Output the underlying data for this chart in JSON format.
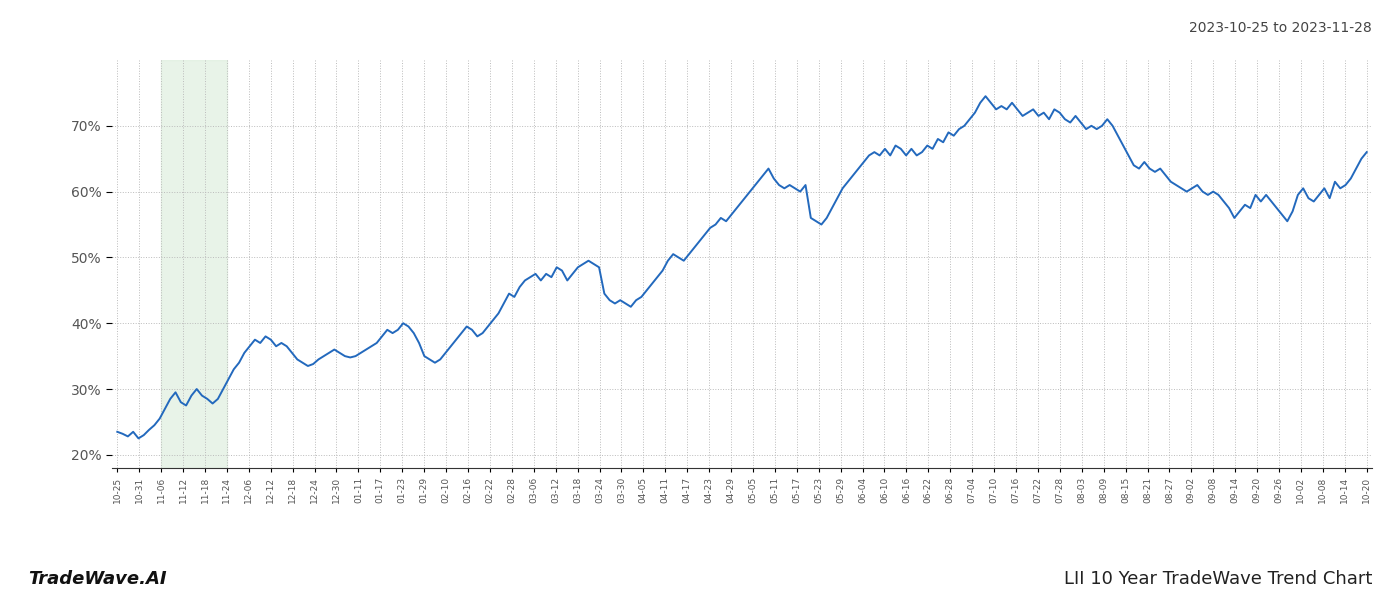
{
  "title_top_right": "2023-10-25 to 2023-11-28",
  "footer_left": "TradeWave.AI",
  "footer_right": "LII 10 Year TradeWave Trend Chart",
  "highlight_region_start_label": "11-06",
  "highlight_region_end_label": "11-24",
  "line_color": "#2369bd",
  "line_width": 1.4,
  "highlight_color": "#ddeedd",
  "highlight_alpha": 0.65,
  "bg_color": "#ffffff",
  "grid_color": "#bbbbbb",
  "ylim": [
    18,
    80
  ],
  "yticks": [
    20,
    30,
    40,
    50,
    60,
    70
  ],
  "x_labels": [
    "10-25",
    "10-31",
    "11-06",
    "11-12",
    "11-18",
    "11-24",
    "12-06",
    "12-12",
    "12-18",
    "12-24",
    "12-30",
    "01-11",
    "01-17",
    "01-23",
    "01-29",
    "02-10",
    "02-16",
    "02-22",
    "02-28",
    "03-06",
    "03-12",
    "03-18",
    "03-24",
    "03-30",
    "04-05",
    "04-11",
    "04-17",
    "04-23",
    "04-29",
    "05-05",
    "05-11",
    "05-17",
    "05-23",
    "05-29",
    "06-04",
    "06-10",
    "06-16",
    "06-22",
    "06-28",
    "07-04",
    "07-10",
    "07-16",
    "07-22",
    "07-28",
    "08-03",
    "08-09",
    "08-15",
    "08-21",
    "08-27",
    "09-02",
    "09-08",
    "09-14",
    "09-20",
    "09-26",
    "10-02",
    "10-08",
    "10-14",
    "10-20"
  ],
  "values": [
    23.5,
    23.2,
    22.8,
    23.5,
    22.5,
    23.0,
    23.8,
    24.5,
    25.5,
    27.0,
    28.5,
    29.5,
    28.0,
    27.5,
    29.0,
    30.0,
    29.0,
    28.5,
    27.8,
    28.5,
    30.0,
    31.5,
    33.0,
    34.0,
    35.5,
    36.5,
    37.5,
    37.0,
    38.0,
    37.5,
    36.5,
    37.0,
    36.5,
    35.5,
    34.5,
    34.0,
    33.5,
    33.8,
    34.5,
    35.0,
    35.5,
    36.0,
    35.5,
    35.0,
    34.8,
    35.0,
    35.5,
    36.0,
    36.5,
    37.0,
    38.0,
    39.0,
    38.5,
    39.0,
    40.0,
    39.5,
    38.5,
    37.0,
    35.0,
    34.5,
    34.0,
    34.5,
    35.5,
    36.5,
    37.5,
    38.5,
    39.5,
    39.0,
    38.0,
    38.5,
    39.5,
    40.5,
    41.5,
    43.0,
    44.5,
    44.0,
    45.5,
    46.5,
    47.0,
    47.5,
    46.5,
    47.5,
    47.0,
    48.5,
    48.0,
    46.5,
    47.5,
    48.5,
    49.0,
    49.5,
    49.0,
    48.5,
    44.5,
    43.5,
    43.0,
    43.5,
    43.0,
    42.5,
    43.5,
    44.0,
    45.0,
    46.0,
    47.0,
    48.0,
    49.5,
    50.5,
    50.0,
    49.5,
    50.5,
    51.5,
    52.5,
    53.5,
    54.5,
    55.0,
    56.0,
    55.5,
    56.5,
    57.5,
    58.5,
    59.5,
    60.5,
    61.5,
    62.5,
    63.5,
    62.0,
    61.0,
    60.5,
    61.0,
    60.5,
    60.0,
    61.0,
    56.0,
    55.5,
    55.0,
    56.0,
    57.5,
    59.0,
    60.5,
    61.5,
    62.5,
    63.5,
    64.5,
    65.5,
    66.0,
    65.5,
    66.5,
    65.5,
    67.0,
    66.5,
    65.5,
    66.5,
    65.5,
    66.0,
    67.0,
    66.5,
    68.0,
    67.5,
    69.0,
    68.5,
    69.5,
    70.0,
    71.0,
    72.0,
    73.5,
    74.5,
    73.5,
    72.5,
    73.0,
    72.5,
    73.5,
    72.5,
    71.5,
    72.0,
    72.5,
    71.5,
    72.0,
    71.0,
    72.5,
    72.0,
    71.0,
    70.5,
    71.5,
    70.5,
    69.5,
    70.0,
    69.5,
    70.0,
    71.0,
    70.0,
    68.5,
    67.0,
    65.5,
    64.0,
    63.5,
    64.5,
    63.5,
    63.0,
    63.5,
    62.5,
    61.5,
    61.0,
    60.5,
    60.0,
    60.5,
    61.0,
    60.0,
    59.5,
    60.0,
    59.5,
    58.5,
    57.5,
    56.0,
    57.0,
    58.0,
    57.5,
    59.5,
    58.5,
    59.5,
    58.5,
    57.5,
    56.5,
    55.5,
    57.0,
    59.5,
    60.5,
    59.0,
    58.5,
    59.5,
    60.5,
    59.0,
    61.5,
    60.5,
    61.0,
    62.0,
    63.5,
    65.0,
    66.0
  ]
}
